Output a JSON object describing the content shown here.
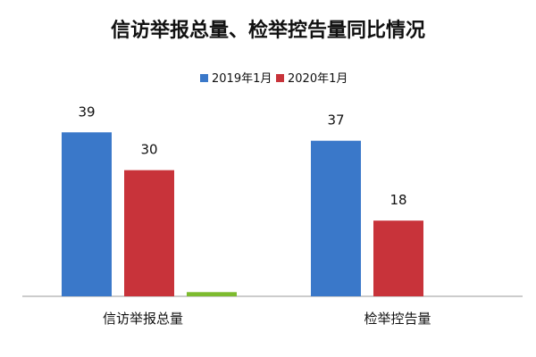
{
  "chart_data": {
    "type": "bar",
    "title": "信访举报总量、检举控告量同比情况",
    "categories": [
      "信访举报总量",
      "检举控告量"
    ],
    "series": [
      {
        "name": "2019年1月",
        "color": "#3A78C9",
        "values": [
          39,
          37
        ]
      },
      {
        "name": "2020年1月",
        "color": "#C8333A",
        "values": [
          30,
          18
        ]
      },
      {
        "name": "",
        "color": "#7DBB2F",
        "values": [
          1,
          null
        ]
      }
    ],
    "ylim": [
      0,
      45
    ],
    "grid": false,
    "legend_position": "top-center",
    "xlabel": "",
    "ylabel": ""
  }
}
